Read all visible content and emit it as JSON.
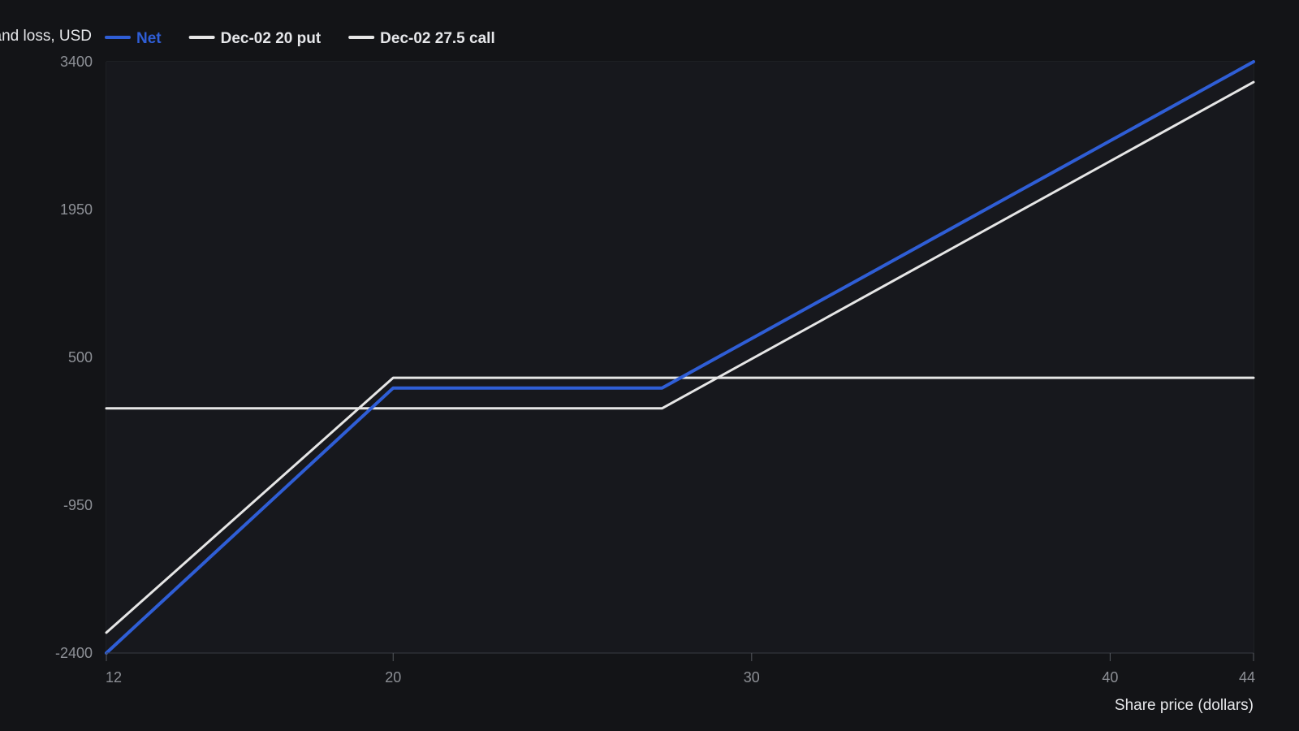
{
  "chart_data": {
    "type": "line",
    "ylabel": "Profit and loss, USD",
    "xlabel": "Share price (dollars)",
    "xlim": [
      12,
      44
    ],
    "ylim": [
      -2400,
      3400
    ],
    "x_ticks": [
      "12",
      "20",
      "30",
      "40",
      "44"
    ],
    "y_ticks": [
      "3400",
      "1950",
      "500",
      "-950",
      "-2400"
    ],
    "grid": true,
    "legend_position": "top-left",
    "series": [
      {
        "name": "Net",
        "color": "#2f5ed6",
        "points": [
          [
            12,
            -2400
          ],
          [
            20,
            200
          ],
          [
            27.5,
            200
          ],
          [
            44,
            3400
          ]
        ]
      },
      {
        "name": "Dec-02 20 put",
        "color": "#e6e6e6",
        "points": [
          [
            12,
            -2200
          ],
          [
            20,
            300
          ],
          [
            44,
            300
          ]
        ]
      },
      {
        "name": "Dec-02 27.5 call",
        "color": "#e6e6e6",
        "points": [
          [
            12,
            0
          ],
          [
            27.5,
            0
          ],
          [
            44,
            3200
          ]
        ]
      }
    ]
  }
}
